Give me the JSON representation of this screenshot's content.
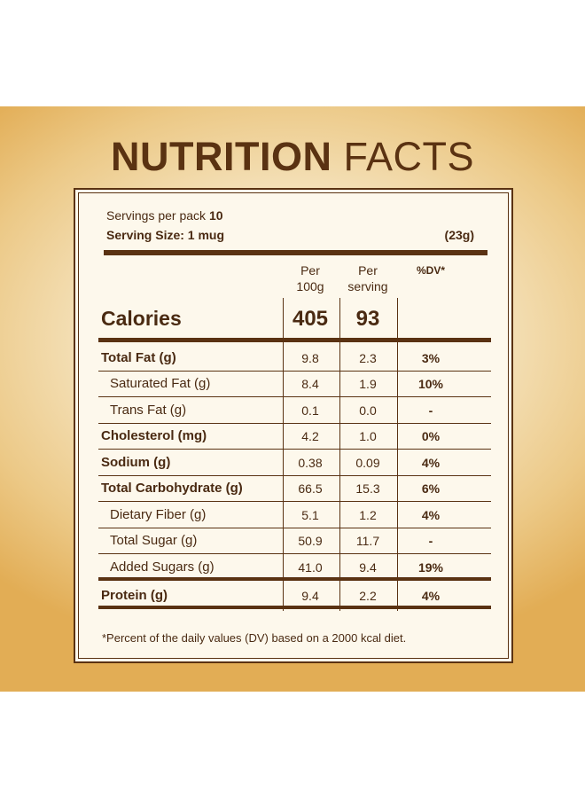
{
  "title": {
    "bold": "NUTRITION",
    "light": "FACTS"
  },
  "servings": {
    "label": "Servings per pack",
    "value": "10"
  },
  "serving_size": {
    "label": "Serving Size: 1 mug",
    "value": "(23g)"
  },
  "columns": {
    "per_100g_line1": "Per",
    "per_100g_line2": "100g",
    "per_serving_line1": "Per",
    "per_serving_line2": "serving",
    "dv": "%DV*"
  },
  "calories": {
    "label": "Calories",
    "per_100g": "405",
    "per_serving": "93"
  },
  "nutrients": [
    {
      "label": "Total Fat (g)",
      "per_100g": "9.8",
      "per_serving": "2.3",
      "dv": "3%"
    },
    {
      "label": "Saturated Fat (g)",
      "per_100g": "8.4",
      "per_serving": "1.9",
      "dv": "10%"
    },
    {
      "label": "Trans Fat (g)",
      "per_100g": "0.1",
      "per_serving": "0.0",
      "dv": "-"
    },
    {
      "label": "Cholesterol (mg)",
      "per_100g": "4.2",
      "per_serving": "1.0",
      "dv": "0%"
    },
    {
      "label": "Sodium (g)",
      "per_100g": "0.38",
      "per_serving": "0.09",
      "dv": "4%"
    },
    {
      "label": "Total Carbohydrate (g)",
      "per_100g": "66.5",
      "per_serving": "15.3",
      "dv": "6%"
    },
    {
      "label": "Dietary Fiber (g)",
      "per_100g": "5.1",
      "per_serving": "1.2",
      "dv": "4%"
    },
    {
      "label": "Total Sugar (g)",
      "per_100g": "50.9",
      "per_serving": "11.7",
      "dv": "-"
    },
    {
      "label": "Added Sugars (g)",
      "per_100g": "41.0",
      "per_serving": "9.4",
      "dv": "19%"
    },
    {
      "label": "Protein (g)",
      "per_100g": "9.4",
      "per_serving": "2.2",
      "dv": "4%"
    }
  ],
  "footnote": "*Percent of the daily values (DV) based on a 2000 kcal diet.",
  "colors": {
    "text": "#4a2a12",
    "panel": "#fdf8ec",
    "background_gold": "#e2ad55"
  }
}
